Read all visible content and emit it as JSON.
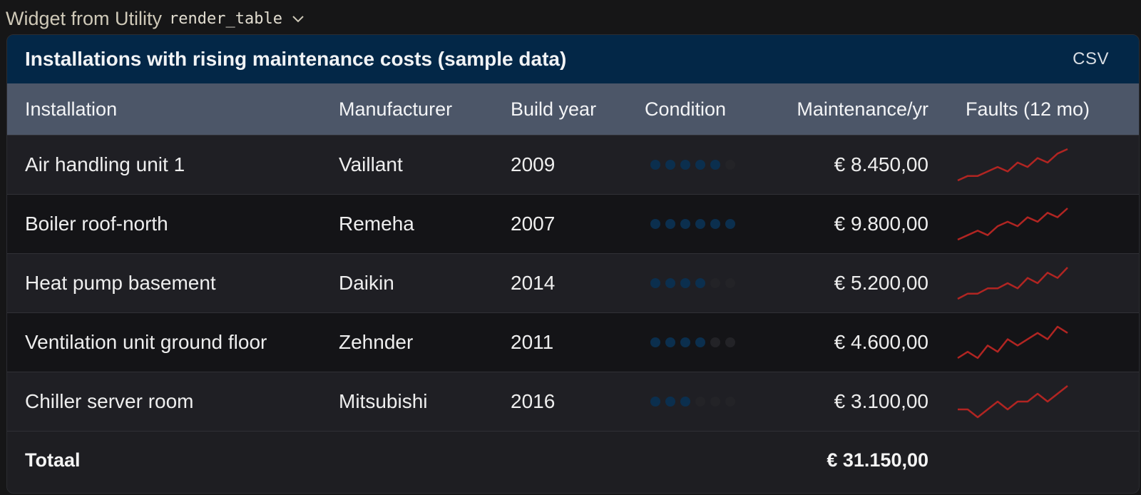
{
  "widget_header": {
    "prefix": "Widget from Utility",
    "code": "render_table",
    "chevron_icon": "chevron-down-icon"
  },
  "card": {
    "title": "Installations with rising maintenance costs (sample data)",
    "csv_label": "CSV"
  },
  "colors": {
    "title_bar": "#032747",
    "header_row": "#4c5668",
    "condition_dot": "#0b2f4e",
    "sparkline": "#b12522"
  },
  "columns": [
    "Installation",
    "Manufacturer",
    "Build year",
    "Condition",
    "Maintenance/yr",
    "Faults (12 mo)"
  ],
  "rows": [
    {
      "installation": "Air handling unit 1",
      "manufacturer": "Vaillant",
      "build_year": "2009",
      "condition": 5,
      "condition_max": 6,
      "maintenance": "€ 8.450,00",
      "faults": [
        1,
        2,
        2,
        3,
        4,
        3,
        5,
        4,
        6,
        5,
        7,
        8
      ]
    },
    {
      "installation": "Boiler roof-north",
      "manufacturer": "Remeha",
      "build_year": "2007",
      "condition": 6,
      "condition_max": 6,
      "maintenance": "€ 9.800,00",
      "faults": [
        1,
        2,
        3,
        2,
        4,
        5,
        4,
        6,
        5,
        7,
        6,
        8
      ]
    },
    {
      "installation": "Heat pump basement",
      "manufacturer": "Daikin",
      "build_year": "2014",
      "condition": 4,
      "condition_max": 6,
      "maintenance": "€ 5.200,00",
      "faults": [
        1,
        2,
        2,
        3,
        3,
        4,
        3,
        5,
        4,
        6,
        5,
        7
      ]
    },
    {
      "installation": "Ventilation unit ground floor",
      "manufacturer": "Zehnder",
      "build_year": "2011",
      "condition": 4,
      "condition_max": 6,
      "maintenance": "€ 4.600,00",
      "faults": [
        1,
        2,
        1,
        3,
        2,
        4,
        3,
        4,
        5,
        4,
        6,
        5
      ]
    },
    {
      "installation": "Chiller server room",
      "manufacturer": "Mitsubishi",
      "build_year": "2016",
      "condition": 3,
      "condition_max": 6,
      "maintenance": "€ 3.100,00",
      "faults": [
        2,
        2,
        1,
        2,
        3,
        2,
        3,
        3,
        4,
        3,
        4,
        5
      ]
    }
  ],
  "totals": {
    "label": "Totaal",
    "maintenance": "€ 31.150,00"
  }
}
